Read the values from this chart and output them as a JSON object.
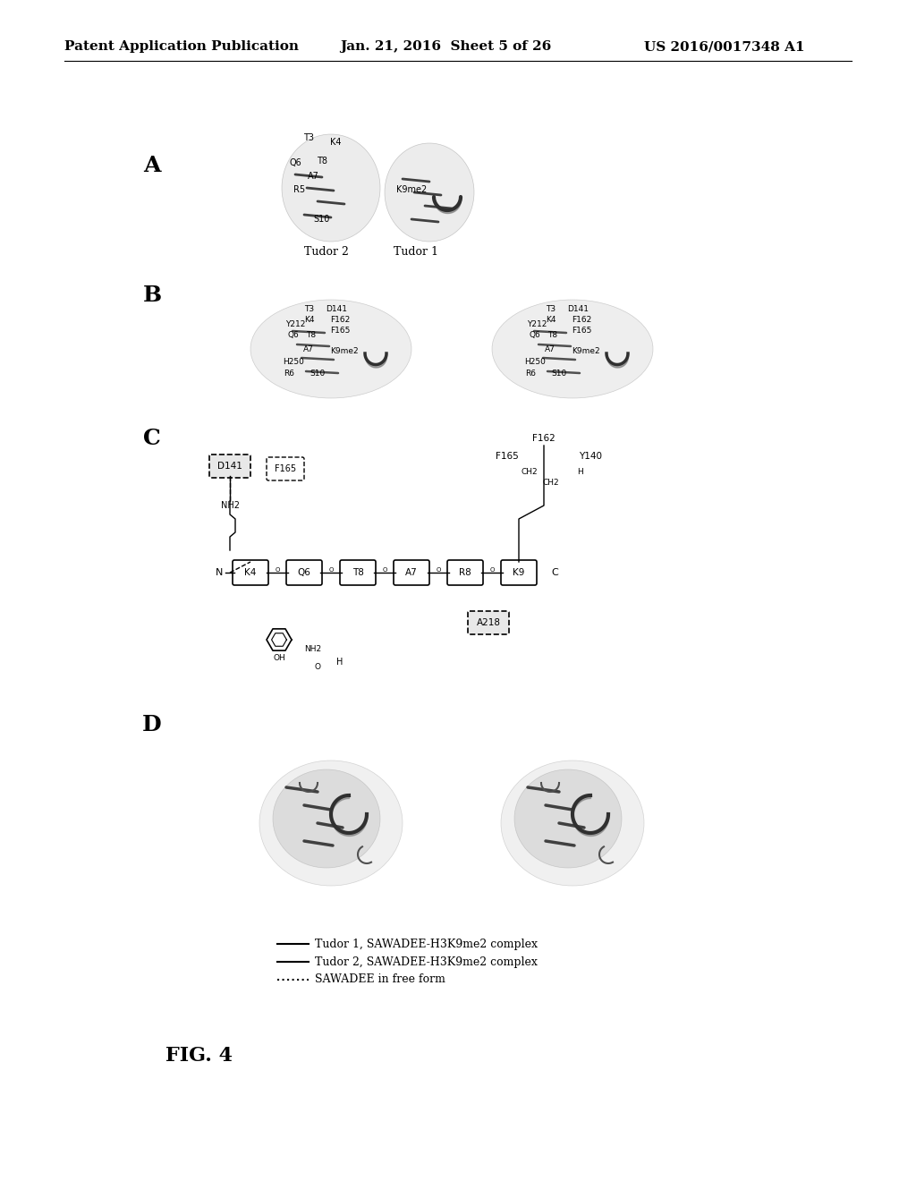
{
  "background_color": "#ffffff",
  "header_left": "Patent Application Publication",
  "header_mid": "Jan. 21, 2016  Sheet 5 of 26",
  "header_right": "US 2016/0017348 A1",
  "header_fontsize": 11,
  "fig_label": "FIG. 4",
  "fig_label_fontsize": 16,
  "panel_labels": [
    "A",
    "B",
    "C",
    "D"
  ],
  "panel_label_fontsize": 18,
  "legend_items": [
    "Tudor 1, SAWADEE-H3K9me2 complex",
    "Tudor 2, SAWADEE-H3K9me2 complex",
    "SAWADEE in free form"
  ],
  "legend_fontsize": 9
}
